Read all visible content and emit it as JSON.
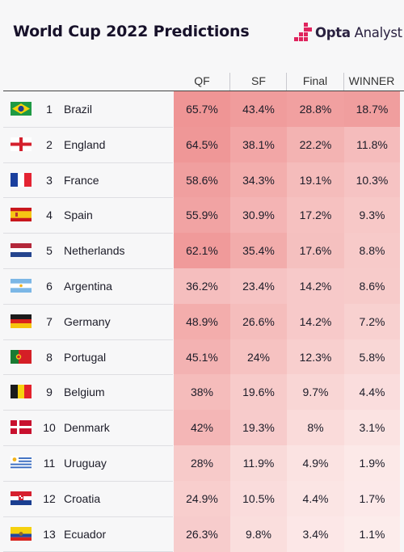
{
  "header": {
    "title": "World Cup 2022 Predictions",
    "brand_bold": "Opta",
    "brand_light": "Analyst"
  },
  "columns": [
    "QF",
    "SF",
    "Final",
    "WINNER"
  ],
  "colors": {
    "accent": "#e0245e",
    "heat_high": "#ee8f8f",
    "heat_low": "#fdf1f0"
  },
  "chart_data": {
    "type": "table",
    "title": "World Cup 2022 Predictions",
    "columns": [
      "QF",
      "SF",
      "Final",
      "WINNER"
    ],
    "rows": [
      {
        "rank": "1",
        "team": "Brazil",
        "flag": "brazil-flag-icon",
        "values": [
          "65.7%",
          "43.4%",
          "28.8%",
          "18.7%"
        ]
      },
      {
        "rank": "2",
        "team": "England",
        "flag": "england-flag-icon",
        "values": [
          "64.5%",
          "38.1%",
          "22.2%",
          "11.8%"
        ]
      },
      {
        "rank": "3",
        "team": "France",
        "flag": "france-flag-icon",
        "values": [
          "58.6%",
          "34.3%",
          "19.1%",
          "10.3%"
        ]
      },
      {
        "rank": "4",
        "team": "Spain",
        "flag": "spain-flag-icon",
        "values": [
          "55.9%",
          "30.9%",
          "17.2%",
          "9.3%"
        ]
      },
      {
        "rank": "5",
        "team": "Netherlands",
        "flag": "netherlands-flag-icon",
        "values": [
          "62.1%",
          "35.4%",
          "17.6%",
          "8.8%"
        ]
      },
      {
        "rank": "6",
        "team": "Argentina",
        "flag": "argentina-flag-icon",
        "values": [
          "36.2%",
          "23.4%",
          "14.2%",
          "8.6%"
        ]
      },
      {
        "rank": "7",
        "team": "Germany",
        "flag": "germany-flag-icon",
        "values": [
          "48.9%",
          "26.6%",
          "14.2%",
          "7.2%"
        ]
      },
      {
        "rank": "8",
        "team": "Portugal",
        "flag": "portugal-flag-icon",
        "values": [
          "45.1%",
          "24%",
          "12.3%",
          "5.8%"
        ]
      },
      {
        "rank": "9",
        "team": "Belgium",
        "flag": "belgium-flag-icon",
        "values": [
          "38%",
          "19.6%",
          "9.7%",
          "4.4%"
        ]
      },
      {
        "rank": "10",
        "team": "Denmark",
        "flag": "denmark-flag-icon",
        "values": [
          "42%",
          "19.3%",
          "8%",
          "3.1%"
        ]
      },
      {
        "rank": "11",
        "team": "Uruguay",
        "flag": "uruguay-flag-icon",
        "values": [
          "28%",
          "11.9%",
          "4.9%",
          "1.9%"
        ]
      },
      {
        "rank": "12",
        "team": "Croatia",
        "flag": "croatia-flag-icon",
        "values": [
          "24.9%",
          "10.5%",
          "4.4%",
          "1.7%"
        ]
      },
      {
        "rank": "13",
        "team": "Ecuador",
        "flag": "ecuador-flag-icon",
        "values": [
          "26.3%",
          "9.8%",
          "3.4%",
          "1.1%"
        ]
      }
    ]
  }
}
